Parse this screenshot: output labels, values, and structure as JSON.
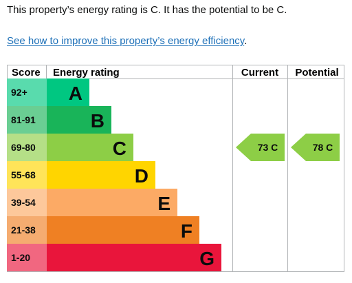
{
  "summary_text": "This property’s energy rating is C. It has the potential to be C.",
  "improve_link": {
    "text": "See how to improve this property’s energy efficiency",
    "trailing": "."
  },
  "chart_data": {
    "type": "bar",
    "headers": {
      "score": "Score",
      "rating": "Energy rating",
      "current": "Current",
      "potential": "Potential"
    },
    "bands": [
      {
        "letter": "A",
        "range": "92+",
        "min": 92,
        "color": "#00c781"
      },
      {
        "letter": "B",
        "range": "81-91",
        "min": 81,
        "color": "#19b459"
      },
      {
        "letter": "C",
        "range": "69-80",
        "min": 69,
        "color": "#8dce46"
      },
      {
        "letter": "D",
        "range": "55-68",
        "min": 55,
        "color": "#ffd500"
      },
      {
        "letter": "E",
        "range": "39-54",
        "min": 39,
        "color": "#fcaa65"
      },
      {
        "letter": "F",
        "range": "21-38",
        "min": 21,
        "color": "#ef8023"
      },
      {
        "letter": "G",
        "range": "1-20",
        "min": 1,
        "color": "#e9153b"
      }
    ],
    "current": {
      "value": 73,
      "letter": "C",
      "label": "73 C",
      "color": "#8dce46"
    },
    "potential": {
      "value": 78,
      "letter": "C",
      "label": "78 C",
      "color": "#8dce46"
    }
  }
}
